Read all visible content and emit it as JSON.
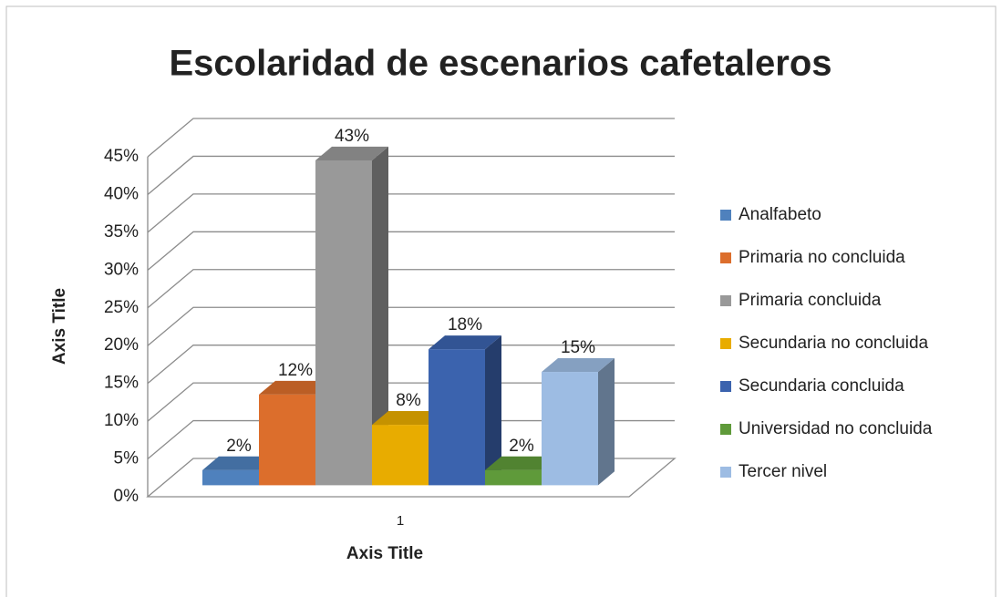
{
  "chart_data": {
    "type": "bar3d",
    "title": "Escolaridad de escenarios cafetaleros",
    "x_label": "Axis Title",
    "y_label": "Axis Title",
    "categories": [
      "1"
    ],
    "series": [
      {
        "name": "Analfabeto",
        "color": "#4f81bd",
        "values": [
          2
        ],
        "value_labels": [
          "2%"
        ]
      },
      {
        "name": "Primaria no concluida",
        "color": "#dc6e2c",
        "values": [
          12
        ],
        "value_labels": [
          "12%"
        ]
      },
      {
        "name": "Primaria concluida",
        "color": "#999999",
        "values": [
          43
        ],
        "value_labels": [
          "43%"
        ]
      },
      {
        "name": "Secundaria no concluida",
        "color": "#e8ac00",
        "values": [
          8
        ],
        "value_labels": [
          "8%"
        ]
      },
      {
        "name": "Secundaria concluida",
        "color": "#3b63ae",
        "values": [
          18
        ],
        "value_labels": [
          "18%"
        ]
      },
      {
        "name": "Universidad no concluida",
        "color": "#5f9a3a",
        "values": [
          2
        ],
        "value_labels": [
          "2%"
        ]
      },
      {
        "name": "Tercer nivel",
        "color": "#9dbce3",
        "values": [
          15
        ],
        "value_labels": [
          "15%"
        ]
      }
    ],
    "ylim": [
      0,
      45
    ],
    "yticks": [
      {
        "value": 0,
        "label": "0%"
      },
      {
        "value": 5,
        "label": "5%"
      },
      {
        "value": 10,
        "label": "10%"
      },
      {
        "value": 15,
        "label": "15%"
      },
      {
        "value": 20,
        "label": "20%"
      },
      {
        "value": 25,
        "label": "25%"
      },
      {
        "value": 30,
        "label": "30%"
      },
      {
        "value": 35,
        "label": "35%"
      },
      {
        "value": 40,
        "label": "40%"
      },
      {
        "value": 45,
        "label": "45%"
      }
    ],
    "grid": true,
    "legend": "right"
  }
}
